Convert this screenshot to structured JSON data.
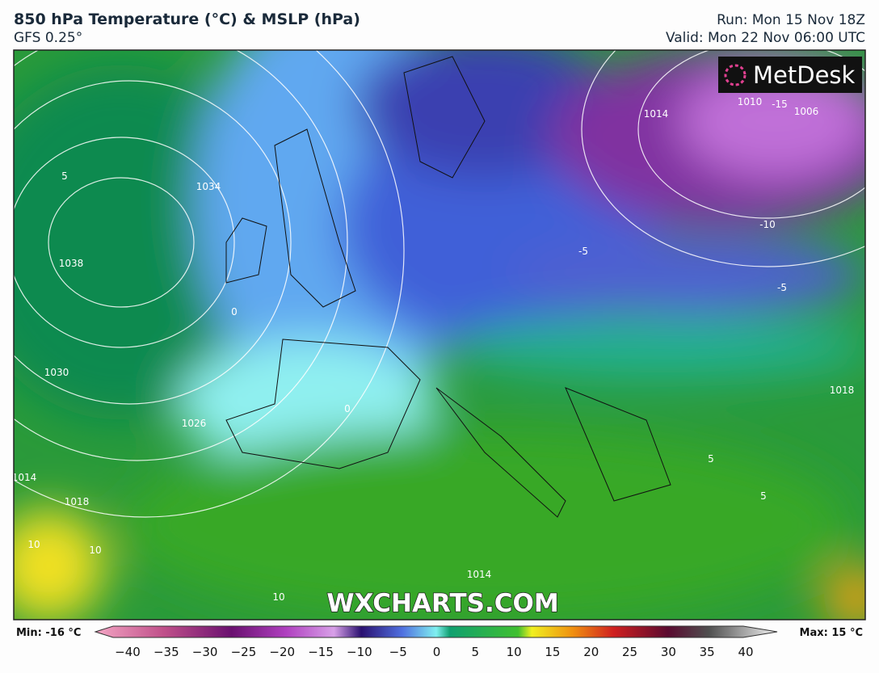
{
  "header": {
    "title": "850 hPa Temperature (°C) & MSLP (hPa)",
    "model": "GFS 0.25°",
    "run": "Run: Mon 15 Nov 18Z",
    "valid": "Valid: Mon 22 Nov 06:00 UTC"
  },
  "logo": "MetDesk",
  "watermark": "WXCHARTS.COM",
  "map_labels": [
    "1034",
    "1038",
    "1030",
    "1026",
    "1014",
    "1018",
    "1010",
    "1006",
    "1014",
    "1018",
    "1014",
    "-15",
    "-5",
    "-5",
    "0",
    "0",
    "5",
    "5",
    "5",
    "10",
    "10",
    "10",
    "-10"
  ],
  "colorbar": {
    "min_label": "Min: -16 °C",
    "max_label": "Max: 15 °C",
    "ticks": [
      "−40",
      "−35",
      "−30",
      "−25",
      "−20",
      "−15",
      "−10",
      "−5",
      "0",
      "5",
      "10",
      "15",
      "20",
      "25",
      "30",
      "35",
      "40"
    ]
  }
}
